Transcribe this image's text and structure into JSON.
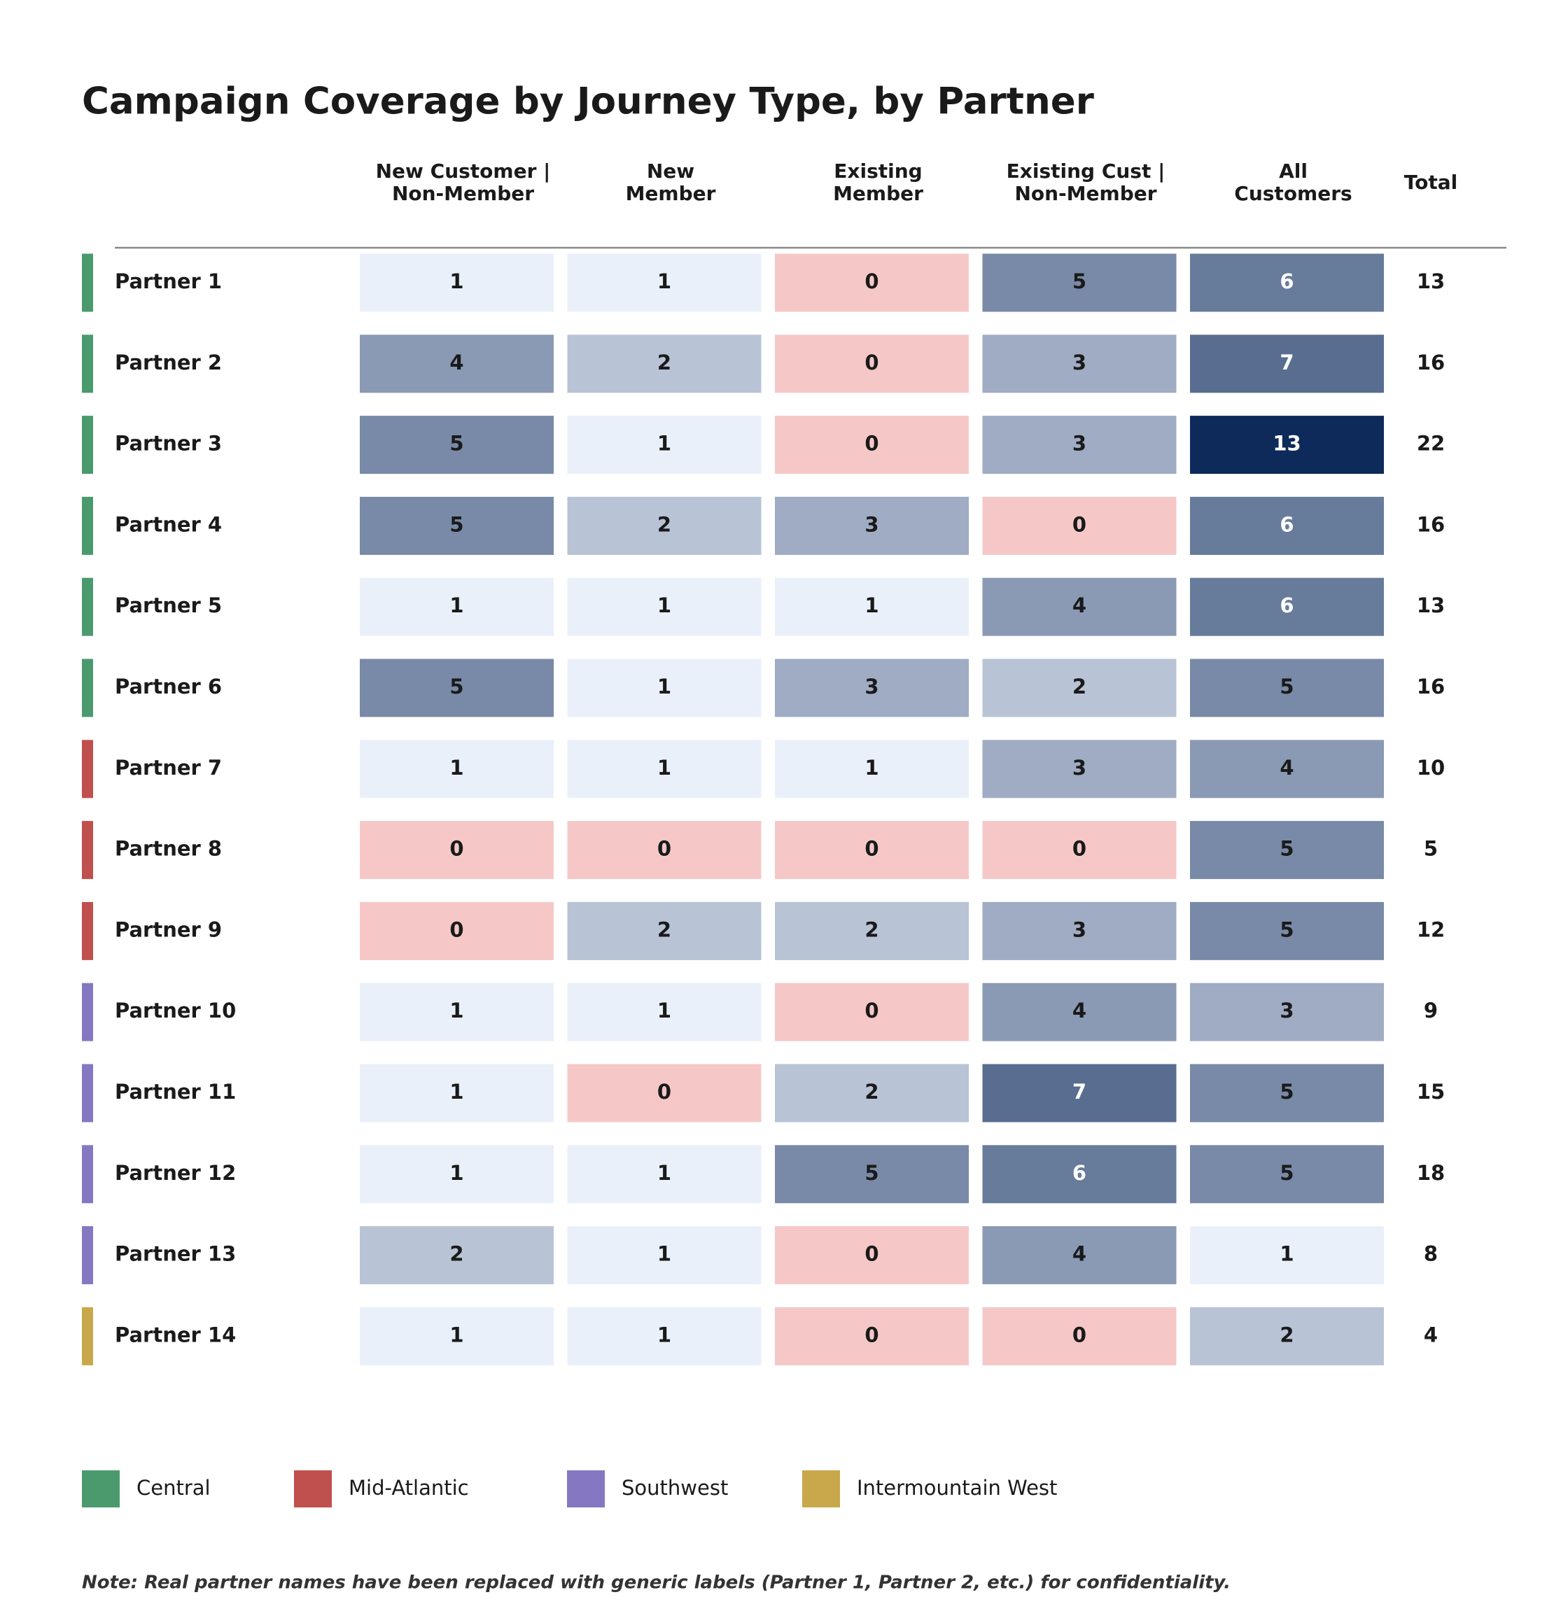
{
  "chart_data": {
    "type": "heatmap",
    "title": "Campaign Coverage by Journey Type, by Partner",
    "columns": [
      [
        "New Customer |",
        "Non-Member"
      ],
      [
        "New",
        "Member"
      ],
      [
        "Existing",
        "Member"
      ],
      [
        "Existing Cust |",
        "Non-Member"
      ],
      [
        "All",
        "Customers"
      ]
    ],
    "total_label": "Total",
    "categories": [
      "Partner 1",
      "Partner 2",
      "Partner 3",
      "Partner 4",
      "Partner 5",
      "Partner 6",
      "Partner 7",
      "Partner 8",
      "Partner 9",
      "Partner 10",
      "Partner 11",
      "Partner 12",
      "Partner 13",
      "Partner 14"
    ],
    "region": [
      "Central",
      "Central",
      "Central",
      "Central",
      "Central",
      "Central",
      "Mid-Atlantic",
      "Mid-Atlantic",
      "Mid-Atlantic",
      "Southwest",
      "Southwest",
      "Southwest",
      "Southwest",
      "Intermountain West"
    ],
    "values": [
      [
        1,
        1,
        0,
        5,
        6
      ],
      [
        4,
        2,
        0,
        3,
        7
      ],
      [
        5,
        1,
        0,
        3,
        13
      ],
      [
        5,
        2,
        3,
        0,
        6
      ],
      [
        1,
        1,
        1,
        4,
        6
      ],
      [
        5,
        1,
        3,
        2,
        5
      ],
      [
        1,
        1,
        1,
        3,
        4
      ],
      [
        0,
        0,
        0,
        0,
        5
      ],
      [
        0,
        2,
        2,
        3,
        5
      ],
      [
        1,
        1,
        0,
        4,
        3
      ],
      [
        1,
        0,
        2,
        7,
        5
      ],
      [
        1,
        1,
        5,
        6,
        5
      ],
      [
        2,
        1,
        0,
        4,
        1
      ],
      [
        1,
        1,
        0,
        0,
        2
      ]
    ],
    "totals": [
      13,
      16,
      22,
      16,
      13,
      16,
      10,
      5,
      12,
      9,
      15,
      18,
      8,
      4
    ],
    "zero_color": "#f5c8c7",
    "color_min": "#eaf0fa",
    "color_max": "#0d2a5a",
    "legend": [
      {
        "name": "Central",
        "color": "#4a9a6e"
      },
      {
        "name": "Mid-Atlantic",
        "color": "#c0504d"
      },
      {
        "name": "Southwest",
        "color": "#8677c2"
      },
      {
        "name": "Intermountain West",
        "color": "#c8a84b"
      }
    ],
    "note": "Note: Real partner names have been replaced with generic labels (Partner 1, Partner 2, etc.) for confidentiality."
  }
}
